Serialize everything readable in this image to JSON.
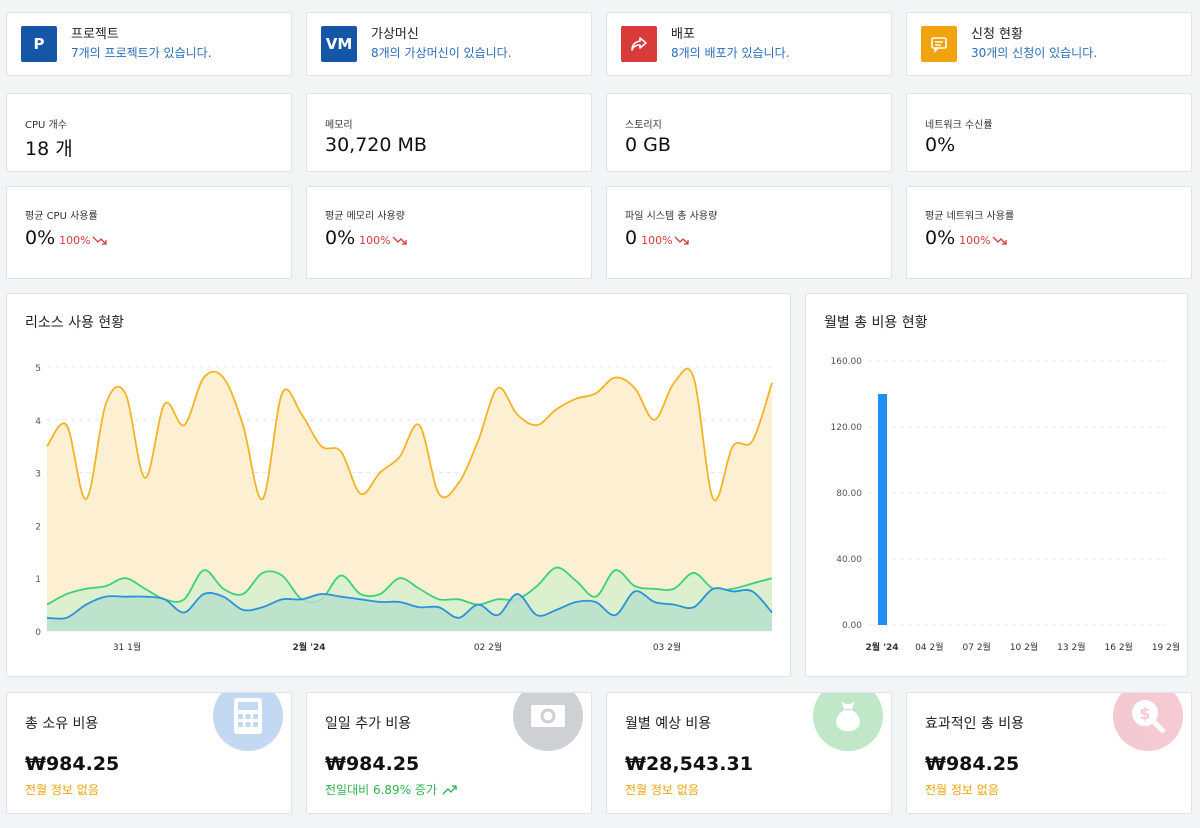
{
  "summary": [
    {
      "title": "프로젝트",
      "sub": "7개의 프로젝트가 있습니다.",
      "icon_text": "P",
      "icon": "project-icon",
      "color": "#1656a6"
    },
    {
      "title": "가상머신",
      "sub": "8개의 가상머신이 있습니다.",
      "icon_text": "VM",
      "icon": "vm-icon",
      "color": "#1656a6"
    },
    {
      "title": "배포",
      "sub": "8개의 배포가 있습니다.",
      "icon_text": "",
      "icon": "share-icon",
      "color": "#d93a3a"
    },
    {
      "title": "신청 현황",
      "sub": "30개의 신청이 있습니다.",
      "icon_text": "",
      "icon": "message-icon",
      "color": "#f0a30a"
    }
  ],
  "stats": [
    {
      "label": "CPU 개수",
      "value": "18 개"
    },
    {
      "label": "메모리",
      "value": "30,720 MB"
    },
    {
      "label": "스토리지",
      "value": "0 GB"
    },
    {
      "label": "네트워크 수신률",
      "value": "0%"
    }
  ],
  "usage": [
    {
      "label": "평균 CPU 사용률",
      "value": "0%",
      "change": "100%"
    },
    {
      "label": "평균 메모리 사용량",
      "value": "0%",
      "change": "100%"
    },
    {
      "label": "파일 시스템 총 사용량",
      "value": "0",
      "change": "100%"
    },
    {
      "label": "평균 네트워크 사용률",
      "value": "0%",
      "change": "100%"
    }
  ],
  "costs": [
    {
      "label": "총 소유 비용",
      "value": "₩984.25",
      "sub": "전월 정보 없음",
      "sub_color": "#f0a30a",
      "icon": "calculator-icon",
      "icon_color": "#3b7fd4"
    },
    {
      "label": "일일 추가 비용",
      "value": "₩984.25",
      "sub": "전일대비 6.89% 증가",
      "sub_color": "#2bb24c",
      "icon": "banknote-icon",
      "icon_color": "#5f6570"
    },
    {
      "label": "월별 예상 비용",
      "value": "₩28,543.31",
      "sub": "전월 정보 없음",
      "sub_color": "#f0a30a",
      "icon": "money-bag-icon",
      "icon_color": "#33b34a"
    },
    {
      "label": "효과적인 총 비용",
      "value": "₩984.25",
      "sub": "전월 정보 없음",
      "sub_color": "#f0a30a",
      "icon": "dollar-search-icon",
      "icon_color": "#e0506e"
    }
  ],
  "chart_data": [
    {
      "type": "area",
      "title": "리소스 사용 현황",
      "ylim": [
        0,
        5
      ],
      "yticks": [
        "0",
        "1",
        "2",
        "3",
        "4",
        "5"
      ],
      "xticks": [
        "31 1월",
        "2월 '24",
        "02 2월",
        "03 2월"
      ],
      "grid": true,
      "series": [
        {
          "color": "#f5b324",
          "fill": "#fdefd2",
          "values": [
            3.5,
            3.9,
            2.5,
            4.3,
            4.5,
            2.9,
            4.3,
            3.9,
            4.8,
            4.8,
            3.9,
            2.5,
            4.5,
            4.1,
            3.5,
            3.4,
            2.6,
            3.0,
            3.3,
            3.9,
            2.6,
            2.8,
            3.6,
            4.6,
            4.1,
            3.9,
            4.2,
            4.4,
            4.5,
            4.8,
            4.6,
            4.0,
            4.7,
            4.8,
            2.5,
            3.5,
            3.6,
            4.7
          ]
        },
        {
          "color": "#3bd176",
          "fill": "#d6f0cf",
          "values": [
            0.5,
            0.7,
            0.8,
            0.85,
            1.0,
            0.8,
            0.6,
            0.6,
            1.15,
            0.8,
            0.7,
            1.1,
            1.05,
            0.6,
            0.6,
            1.05,
            0.7,
            0.7,
            1.0,
            0.8,
            0.6,
            0.6,
            0.5,
            0.6,
            0.6,
            0.85,
            1.2,
            0.95,
            0.65,
            1.15,
            0.85,
            0.8,
            0.8,
            1.1,
            0.8,
            0.8,
            0.9,
            1.0
          ]
        },
        {
          "color": "#2a92d8",
          "fill": "#b9e0cc",
          "values": [
            0.25,
            0.25,
            0.5,
            0.65,
            0.65,
            0.65,
            0.6,
            0.35,
            0.7,
            0.65,
            0.4,
            0.45,
            0.6,
            0.6,
            0.7,
            0.65,
            0.6,
            0.55,
            0.55,
            0.45,
            0.45,
            0.25,
            0.5,
            0.3,
            0.7,
            0.3,
            0.4,
            0.55,
            0.55,
            0.3,
            0.75,
            0.55,
            0.5,
            0.45,
            0.8,
            0.75,
            0.75,
            0.35
          ]
        }
      ]
    },
    {
      "type": "bar",
      "title": "월별 총 비용 현황",
      "ylim": [
        0,
        160
      ],
      "yticks": [
        "0.00",
        "40.00",
        "80.00",
        "120.00",
        "160.00"
      ],
      "categories": [
        "2월 '24",
        "04 2월",
        "07 2월",
        "10 2월",
        "13 2월",
        "16 2월",
        "19 2월"
      ],
      "values": [
        140,
        0,
        0,
        0,
        0,
        0,
        0
      ],
      "color": "#1e90f5",
      "grid": true
    }
  ]
}
